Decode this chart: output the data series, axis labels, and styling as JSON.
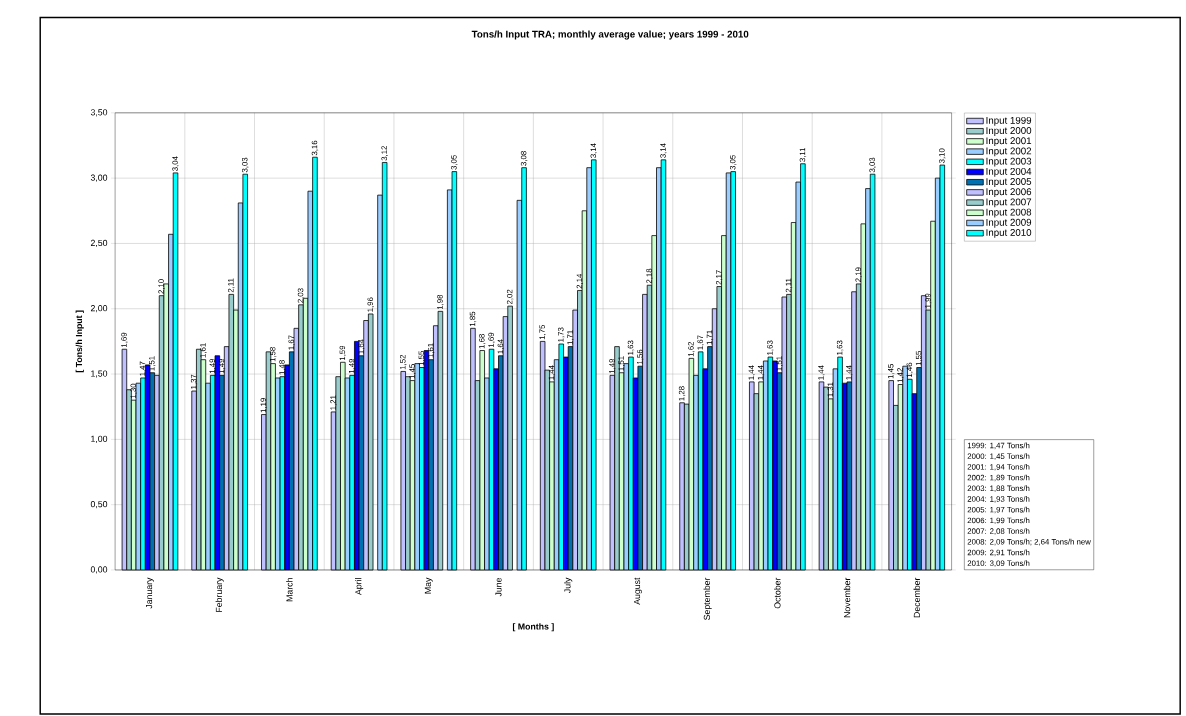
{
  "chart_data": {
    "type": "bar",
    "title": "Tons/h Input TRA; monthly average value; years 1999 - 2010",
    "xlabel": "[ Months ]",
    "ylabel": "[ Tons/h Input ]",
    "categories": [
      "January",
      "February",
      "March",
      "April",
      "May",
      "June",
      "July",
      "August",
      "September",
      "October",
      "November",
      "December"
    ],
    "ylim": [
      0,
      3.5
    ],
    "yticks": [
      {
        "value": 0,
        "label": "0,00"
      },
      {
        "value": 0.5,
        "label": "0,50"
      },
      {
        "value": 1,
        "label": "1,00"
      },
      {
        "value": 1.5,
        "label": "1,50"
      },
      {
        "value": 2,
        "label": "2,00"
      },
      {
        "value": 2.5,
        "label": "2,50"
      },
      {
        "value": 3,
        "label": "3,00"
      },
      {
        "value": 3.5,
        "label": "3,50"
      }
    ],
    "grid": true,
    "legend": "right",
    "series": [
      {
        "name": "Input 1999",
        "color": "#c0c0ff",
        "values": [
          1.69,
          1.37,
          1.19,
          1.21,
          1.52,
          1.85,
          1.75,
          1.49,
          1.28,
          1.44,
          1.44,
          1.45
        ],
        "value_labels": [
          "1,69",
          "1,37",
          "1,19",
          "1,21",
          "1,52",
          "1,85",
          "1,75",
          "1,49",
          "1,28",
          "1,44",
          "1,44",
          "1,45"
        ]
      },
      {
        "name": "Input 2000",
        "color": "#99cccc",
        "values": [
          1.38,
          1.69,
          1.67,
          1.48,
          1.48,
          1.45,
          1.53,
          1.71,
          1.27,
          1.35,
          1.4,
          1.26
        ]
      },
      {
        "name": "Input 2001",
        "color": "#ccffcc",
        "values": [
          1.3,
          1.61,
          1.58,
          1.59,
          1.45,
          1.68,
          1.44,
          1.51,
          1.62,
          1.44,
          1.31,
          1.42
        ],
        "value_labels": [
          "1,30",
          "1,61",
          "1,58",
          "1,59",
          "1,45",
          "1,68",
          "1,44",
          "1,51",
          "1,62",
          "1,44",
          "1,31",
          "1,42"
        ]
      },
      {
        "name": "Input 2002",
        "color": "#99ccff",
        "values": [
          1.43,
          1.43,
          1.47,
          1.47,
          1.58,
          1.47,
          1.61,
          1.58,
          1.49,
          1.6,
          1.54,
          1.56
        ]
      },
      {
        "name": "Input 2003",
        "color": "#00ffff",
        "values": [
          1.47,
          1.49,
          1.48,
          1.49,
          1.55,
          1.69,
          1.73,
          1.63,
          1.67,
          1.63,
          1.63,
          1.46
        ],
        "value_labels": [
          "1,47",
          "1,49",
          "1,48",
          "1,49",
          "1,55",
          "1,69",
          "1,73",
          "1,63",
          "1,67",
          "1,63",
          "1,63",
          "1,46"
        ]
      },
      {
        "name": "Input 2004",
        "color": "#0000ff",
        "values": [
          1.57,
          1.64,
          1.57,
          1.75,
          1.68,
          1.54,
          1.63,
          1.47,
          1.54,
          1.6,
          1.43,
          1.35
        ]
      },
      {
        "name": "Input 2005",
        "color": "#0070b0",
        "values": [
          1.51,
          1.49,
          1.67,
          1.64,
          1.61,
          1.64,
          1.71,
          1.56,
          1.71,
          1.51,
          1.44,
          1.55
        ],
        "value_labels": [
          "1,51",
          "1,49",
          "1,67",
          "1,64",
          "1,61",
          "1,64",
          "1,71",
          "1,56",
          "1,71",
          "1,51",
          "1,44",
          "1,55"
        ]
      },
      {
        "name": "Input 2006",
        "color": "#c0c0ff",
        "values": [
          1.49,
          1.71,
          1.85,
          1.91,
          1.87,
          1.94,
          1.99,
          2.11,
          2.0,
          2.09,
          2.13,
          2.1
        ]
      },
      {
        "name": "Input 2007",
        "color": "#99cccc",
        "values": [
          2.1,
          2.11,
          2.03,
          1.96,
          1.98,
          2.02,
          2.14,
          2.18,
          2.17,
          2.11,
          2.19,
          1.99
        ],
        "value_labels": [
          "2,10",
          "2,11",
          "2,03",
          "1,96",
          "1,98",
          "2,02",
          "2,14",
          "2,18",
          "2,17",
          "2,11",
          "2,19",
          "1,99"
        ]
      },
      {
        "name": "Input 2008",
        "color": "#ccffcc",
        "values": [
          2.19,
          1.99,
          2.08,
          null,
          null,
          null,
          2.75,
          2.56,
          2.56,
          2.66,
          2.65,
          2.67
        ]
      },
      {
        "name": "Input 2009",
        "color": "#99ccff",
        "values": [
          2.57,
          2.81,
          2.9,
          2.87,
          2.91,
          2.83,
          3.08,
          3.08,
          3.04,
          2.97,
          2.92,
          3.0
        ]
      },
      {
        "name": "Input 2010",
        "color": "#00ffff",
        "values": [
          3.04,
          3.03,
          3.16,
          3.12,
          3.05,
          3.08,
          3.14,
          3.14,
          3.05,
          3.11,
          3.03,
          3.1
        ],
        "value_labels": [
          "3,04",
          "3,03",
          "3,16",
          "3,12",
          "3,05",
          "3,08",
          "3,14",
          "3,14",
          "3,05",
          "3,11",
          "3,03",
          "3,10"
        ]
      }
    ],
    "annotations": [
      "1999: 1,47 Tons/h",
      "2000: 1,45 Tons/h",
      "2001: 1,94 Tons/h",
      "2002: 1,89 Tons/h",
      "2003: 1,88 Tons/h",
      "2004: 1,93 Tons/h",
      "2005: 1,97 Tons/h",
      "2006: 1,99 Tons/h",
      "2007: 2,08 Tons/h",
      "2008: 2,09 Tons/h; 2,64 Tons/h new",
      "2009: 2,91 Tons/h",
      "2010: 3,09 Tons/h"
    ]
  }
}
